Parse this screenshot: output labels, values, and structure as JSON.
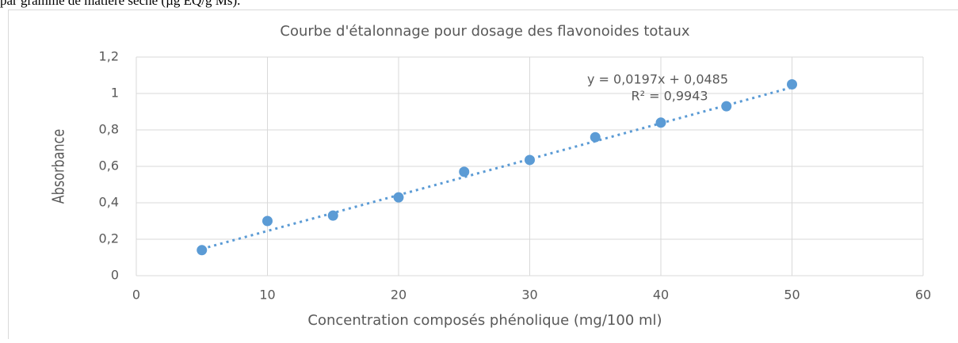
{
  "header_text": "par gramme de matière sèche (µg EQ/g Ms).",
  "chart_data": {
    "type": "scatter",
    "title": "Courbe d'étalonnage pour dosage des flavonoides totaux",
    "x_label": "Concentration composés phénolique (mg/100 ml)",
    "y_label": "Absorbance",
    "x": [
      5,
      10,
      15,
      20,
      25,
      30,
      35,
      40,
      45,
      50
    ],
    "values": [
      0.14,
      0.3,
      0.33,
      0.43,
      0.57,
      0.635,
      0.76,
      0.84,
      0.93,
      1.05
    ],
    "color": "#5b9bd5",
    "trendline": {
      "x": [
        5,
        50
      ],
      "values": [
        0.147,
        1.0335
      ]
    },
    "annotations": [
      "y = 0,0197x + 0,0485",
      "R² = 0,9943"
    ],
    "xlim": [
      0,
      60
    ],
    "xticks": [
      0,
      10,
      20,
      30,
      40,
      50,
      60
    ],
    "ylim": [
      0,
      1.2
    ],
    "yticks": [
      0,
      {
        "value": 0.2,
        "label": "0,2"
      },
      {
        "value": 0.4,
        "label": "0,4"
      },
      {
        "value": 0.6,
        "label": "0,6"
      },
      {
        "value": 0.8,
        "label": "0,8"
      },
      1,
      {
        "value": 1.2,
        "label": "1,2"
      }
    ],
    "grid": true
  }
}
